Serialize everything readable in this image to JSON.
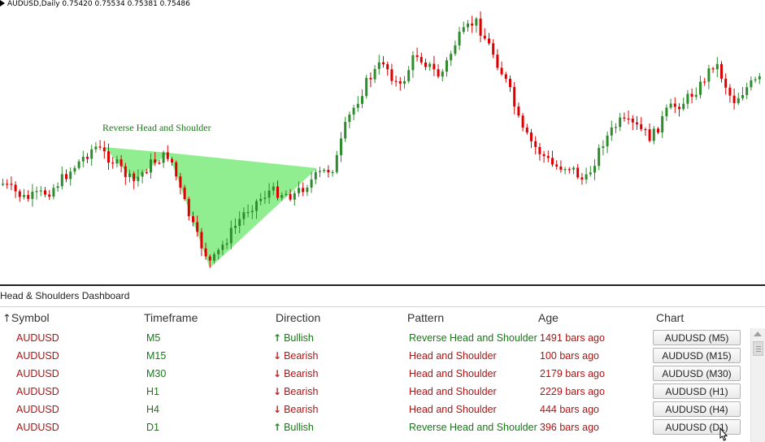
{
  "chart": {
    "symbol_period": "AUDUSD,Daily",
    "ohlc": "0.75420 0.75534 0.75381 0.75486",
    "pattern_label": "Reverse Head and Shoulder",
    "bull_color": "#2e8b2e",
    "bear_color": "#dd0000",
    "pattern_fill": "#90ee90"
  },
  "dashboard": {
    "title": "Head & Shoulders Dashboard",
    "columns": {
      "symbol": "Symbol",
      "timeframe": "Timeframe",
      "direction": "Direction",
      "pattern": "Pattern",
      "age": "Age",
      "chart": "Chart"
    },
    "rows": [
      {
        "symbol": "AUDUSD",
        "timeframe": "M5",
        "direction": "Bullish",
        "dir": "up",
        "pattern": "Reverse Head and Shoulder",
        "age": "1491 bars ago",
        "button": "AUDUSD (M5)"
      },
      {
        "symbol": "AUDUSD",
        "timeframe": "M15",
        "direction": "Bearish",
        "dir": "down",
        "pattern": "Head and Shoulder",
        "age": "100 bars ago",
        "button": "AUDUSD (M15)"
      },
      {
        "symbol": "AUDUSD",
        "timeframe": "M30",
        "direction": "Bearish",
        "dir": "down",
        "pattern": "Head and Shoulder",
        "age": "2179 bars ago",
        "button": "AUDUSD (M30)"
      },
      {
        "symbol": "AUDUSD",
        "timeframe": "H1",
        "direction": "Bearish",
        "dir": "down",
        "pattern": "Head and Shoulder",
        "age": "2229 bars ago",
        "button": "AUDUSD (H1)"
      },
      {
        "symbol": "AUDUSD",
        "timeframe": "H4",
        "direction": "Bearish",
        "dir": "down",
        "pattern": "Head and Shoulder",
        "age": "444 bars ago",
        "button": "AUDUSD (H4)"
      },
      {
        "symbol": "AUDUSD",
        "timeframe": "D1",
        "direction": "Bullish",
        "dir": "up",
        "pattern": "Reverse Head and Shoulder",
        "age": "396 bars ago",
        "button": "AUDUSD (D1)"
      }
    ]
  }
}
